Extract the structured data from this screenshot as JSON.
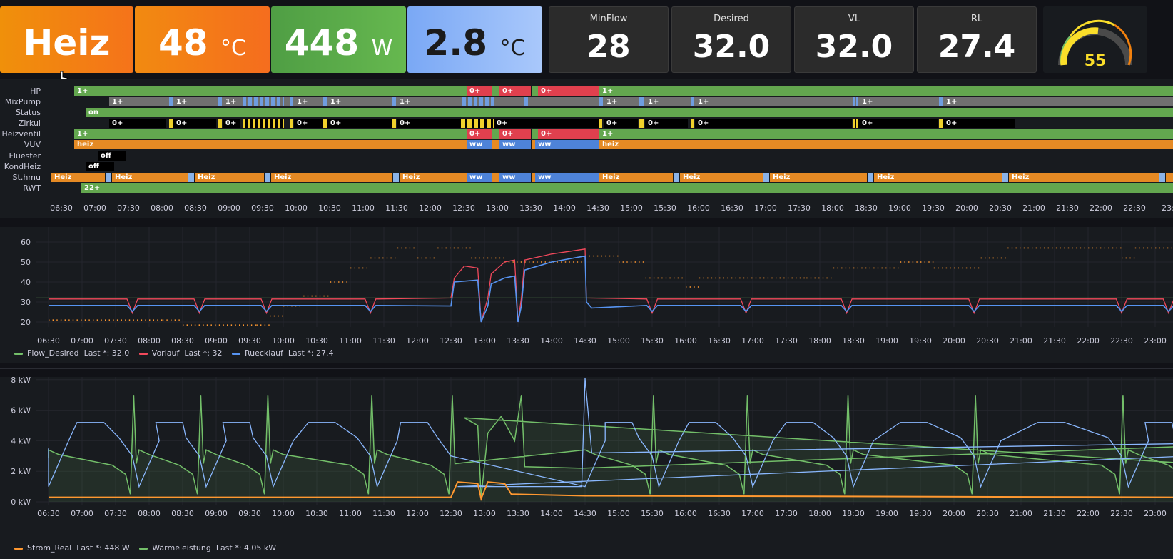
{
  "stats": {
    "mode": {
      "value": "Heiz",
      "color": "#f2810e"
    },
    "temp": {
      "value": "48",
      "unit": "°C"
    },
    "power": {
      "value": "448",
      "unit": "W"
    },
    "outdoor": {
      "value": "2.8",
      "unit": "°C"
    },
    "minflow": {
      "title": "MinFlow",
      "value": "28"
    },
    "desired": {
      "title": "Desired",
      "value": "32.0"
    },
    "vl": {
      "title": "VL",
      "value": "32.0"
    },
    "rl": {
      "title": "RL",
      "value": "27.4"
    },
    "gauge": {
      "value": "55",
      "level": 0.55
    }
  },
  "timeline": {
    "labels": [
      "HP",
      "MixPump",
      "Status",
      "Zirkul",
      "Heizventil",
      "VUV",
      "Fluester",
      "KondHeiz",
      "St.hmu",
      "RWT"
    ],
    "time_ticks": [
      "06:30",
      "07:00",
      "07:30",
      "08:00",
      "08:30",
      "09:00",
      "09:30",
      "10:00",
      "10:30",
      "11:00",
      "11:30",
      "12:00",
      "12:30",
      "13:00",
      "13:30",
      "14:00",
      "14:30",
      "15:00",
      "15:30",
      "16:00",
      "16:30",
      "17:00",
      "17:30",
      "18:00",
      "18:30",
      "19:00",
      "19:30",
      "20:00",
      "20:30",
      "21:00",
      "21:30",
      "22:00",
      "22:30",
      "23:"
    ],
    "values": {
      "on1": "1+",
      "off0": "0+",
      "on": "on",
      "heiz": "heiz",
      "ww": "ww",
      "off": "off",
      "Heiz": "Heiz",
      "rwt": "22+"
    }
  },
  "temp_chart": {
    "y_ticks": [
      "60",
      "50",
      "40",
      "30",
      "20"
    ],
    "x_ticks": [
      "06:30",
      "07:00",
      "07:30",
      "08:00",
      "08:30",
      "09:00",
      "09:30",
      "10:00",
      "10:30",
      "11:00",
      "11:30",
      "12:00",
      "12:30",
      "13:00",
      "13:30",
      "14:00",
      "14:30",
      "15:00",
      "15:30",
      "16:00",
      "16:30",
      "17:00",
      "17:30",
      "18:00",
      "18:30",
      "19:00",
      "19:30",
      "20:00",
      "20:30",
      "21:00",
      "21:30",
      "22:00",
      "22:30",
      "23:00"
    ],
    "legend": [
      {
        "name": "Flow_Desired",
        "last": "Last *: 32.0",
        "color": "#73bf69"
      },
      {
        "name": "Vorlauf",
        "last": "Last *: 32",
        "color": "#f2495c"
      },
      {
        "name": "Ruecklauf",
        "last": "Last *: 27.4",
        "color": "#5794f2"
      }
    ]
  },
  "power_chart": {
    "y_ticks": [
      "8 kW",
      "6 kW",
      "4 kW",
      "2 kW",
      "0 kW"
    ],
    "x_ticks": [
      "06:30",
      "07:00",
      "07:30",
      "08:00",
      "08:30",
      "09:00",
      "09:30",
      "10:00",
      "10:30",
      "11:00",
      "11:30",
      "12:00",
      "12:30",
      "13:00",
      "13:30",
      "14:00",
      "14:30",
      "15:00",
      "15:30",
      "16:00",
      "16:30",
      "17:00",
      "17:30",
      "18:00",
      "18:30",
      "19:00",
      "19:30",
      "20:00",
      "20:30",
      "21:00",
      "21:30",
      "22:00",
      "22:30",
      "23:00"
    ],
    "legend": [
      {
        "name": "Strom_Real",
        "last": "Last *: 448 W",
        "color": "#ff9830"
      },
      {
        "name": "Wärmeleistung",
        "last": "Last *: 4.05 kW",
        "color": "#73bf69"
      }
    ]
  },
  "chart_data": [
    {
      "type": "line",
      "series": [
        {
          "name": "Flow_Desired",
          "last": 32.0
        },
        {
          "name": "Vorlauf",
          "last": 32
        },
        {
          "name": "Ruecklauf",
          "last": 27.4
        }
      ],
      "ylim": [
        15,
        62
      ]
    },
    {
      "type": "area",
      "series": [
        {
          "name": "Strom_Real",
          "last": "448 W"
        },
        {
          "name": "Wärmeleistung",
          "last": "4.05 kW"
        }
      ],
      "ylim": [
        0,
        8.5
      ]
    }
  ]
}
